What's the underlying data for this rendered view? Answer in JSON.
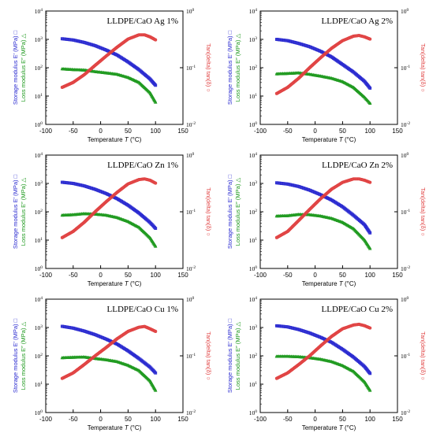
{
  "colors": {
    "storage": "#2a2ad0",
    "loss": "#1f9a1f",
    "tan": "#e04040",
    "axis": "#000000"
  },
  "shared": {
    "xlabel_prefix": "Temperature ",
    "xlabel_var": "T",
    "xlabel_unit": " (°C)",
    "ylabel_storage": "Storage modulus E′ (MPa) □",
    "ylabel_loss": "Loss modulus E″ (MPa) △",
    "ylabel_tan": "Tan(delta) tan(δ) ○",
    "x_ticks": [
      "-100",
      "-50",
      "0",
      "50",
      "100",
      "150"
    ],
    "y_left_ticks": [
      {
        "base": "10",
        "exp": "0"
      },
      {
        "base": "10",
        "exp": "1"
      },
      {
        "base": "10",
        "exp": "2"
      },
      {
        "base": "10",
        "exp": "3"
      },
      {
        "base": "10",
        "exp": "4"
      }
    ],
    "y_right_ticks": [
      {
        "base": "10",
        "exp": "-2"
      },
      {
        "base": "10",
        "exp": "-1"
      },
      {
        "base": "10",
        "exp": "0"
      }
    ]
  },
  "chart_data": [
    {
      "type": "line",
      "title": "LLDPE/CaO Ag 1%",
      "xlim": [
        -100,
        150
      ],
      "ylim_left": [
        1,
        10000
      ],
      "ylim_right": [
        0.01,
        1
      ],
      "yscale": "log",
      "series": [
        {
          "name": "Storage modulus E′",
          "axis": "left",
          "marker": "square",
          "x": [
            -70,
            -50,
            -30,
            -10,
            10,
            30,
            50,
            70,
            90,
            100
          ],
          "values": [
            1050,
            950,
            780,
            600,
            420,
            280,
            160,
            85,
            40,
            24
          ]
        },
        {
          "name": "Loss modulus E″",
          "axis": "left",
          "marker": "triangle",
          "x": [
            -70,
            -50,
            -30,
            -10,
            10,
            30,
            50,
            70,
            90,
            100
          ],
          "values": [
            90,
            85,
            82,
            72,
            65,
            58,
            45,
            30,
            13,
            6
          ]
        },
        {
          "name": "tan(δ)",
          "axis": "right",
          "marker": "circle",
          "x": [
            -70,
            -50,
            -30,
            -10,
            10,
            30,
            50,
            70,
            80,
            90,
            100
          ],
          "values": [
            0.045,
            0.055,
            0.075,
            0.11,
            0.16,
            0.23,
            0.32,
            0.38,
            0.38,
            0.35,
            0.31
          ]
        }
      ]
    },
    {
      "type": "line",
      "title": "LLDPE/CaO Ag 2%",
      "xlim": [
        -100,
        150
      ],
      "ylim_left": [
        1,
        10000
      ],
      "ylim_right": [
        0.01,
        1
      ],
      "yscale": "log",
      "series": [
        {
          "name": "Storage modulus E′",
          "axis": "left",
          "marker": "square",
          "x": [
            -70,
            -50,
            -30,
            -10,
            10,
            30,
            50,
            70,
            90,
            100
          ],
          "values": [
            1000,
            900,
            720,
            550,
            380,
            240,
            130,
            70,
            33,
            19
          ]
        },
        {
          "name": "Loss modulus E″",
          "axis": "left",
          "marker": "triangle",
          "x": [
            -70,
            -50,
            -30,
            -10,
            10,
            30,
            50,
            70,
            90,
            100
          ],
          "values": [
            60,
            62,
            65,
            58,
            50,
            42,
            32,
            20,
            9,
            5.5
          ]
        },
        {
          "name": "tan(δ)",
          "axis": "right",
          "marker": "circle",
          "x": [
            -70,
            -50,
            -30,
            -10,
            10,
            30,
            50,
            70,
            80,
            90,
            100
          ],
          "values": [
            0.035,
            0.045,
            0.065,
            0.1,
            0.15,
            0.22,
            0.3,
            0.36,
            0.37,
            0.35,
            0.32
          ]
        }
      ]
    },
    {
      "type": "line",
      "title": "LLDPE/CaO Zn 1%",
      "xlim": [
        -100,
        150
      ],
      "ylim_left": [
        1,
        10000
      ],
      "ylim_right": [
        0.01,
        1
      ],
      "yscale": "log",
      "series": [
        {
          "name": "Storage modulus E′",
          "axis": "left",
          "marker": "square",
          "x": [
            -70,
            -50,
            -30,
            -10,
            10,
            30,
            50,
            70,
            90,
            100
          ],
          "values": [
            1100,
            1000,
            820,
            620,
            440,
            290,
            170,
            90,
            42,
            26
          ]
        },
        {
          "name": "Loss modulus E″",
          "axis": "left",
          "marker": "triangle",
          "x": [
            -70,
            -50,
            -30,
            -10,
            10,
            30,
            50,
            70,
            90,
            100
          ],
          "values": [
            75,
            78,
            85,
            82,
            75,
            62,
            45,
            28,
            12,
            6
          ]
        },
        {
          "name": "tan(δ)",
          "axis": "right",
          "marker": "circle",
          "x": [
            -70,
            -50,
            -30,
            -10,
            10,
            30,
            50,
            70,
            80,
            90,
            100
          ],
          "values": [
            0.035,
            0.045,
            0.065,
            0.1,
            0.15,
            0.22,
            0.31,
            0.37,
            0.38,
            0.36,
            0.32
          ]
        }
      ]
    },
    {
      "type": "line",
      "title": "LLDPE/CaO Zn 2%",
      "xlim": [
        -100,
        150
      ],
      "ylim_left": [
        1,
        10000
      ],
      "ylim_right": [
        0.01,
        1
      ],
      "yscale": "log",
      "series": [
        {
          "name": "Storage modulus E′",
          "axis": "left",
          "marker": "square",
          "x": [
            -70,
            -50,
            -30,
            -10,
            10,
            30,
            50,
            70,
            90,
            100
          ],
          "values": [
            1050,
            950,
            780,
            580,
            400,
            260,
            150,
            75,
            35,
            18
          ]
        },
        {
          "name": "Loss modulus E″",
          "axis": "left",
          "marker": "triangle",
          "x": [
            -70,
            -50,
            -30,
            -10,
            10,
            30,
            50,
            70,
            90,
            100
          ],
          "values": [
            70,
            72,
            80,
            78,
            70,
            58,
            42,
            25,
            10,
            5
          ]
        },
        {
          "name": "tan(δ)",
          "axis": "right",
          "marker": "circle",
          "x": [
            -70,
            -50,
            -30,
            -10,
            10,
            30,
            50,
            70,
            80,
            90,
            100
          ],
          "values": [
            0.035,
            0.045,
            0.07,
            0.11,
            0.17,
            0.25,
            0.33,
            0.38,
            0.38,
            0.36,
            0.33
          ]
        }
      ]
    },
    {
      "type": "line",
      "title": "LLDPE/CaO Cu 1%",
      "xlim": [
        -100,
        150
      ],
      "ylim_left": [
        1,
        10000
      ],
      "ylim_right": [
        0.01,
        1
      ],
      "yscale": "log",
      "series": [
        {
          "name": "Storage modulus E′",
          "axis": "left",
          "marker": "square",
          "x": [
            -70,
            -50,
            -30,
            -10,
            10,
            30,
            50,
            70,
            90,
            100
          ],
          "values": [
            1100,
            950,
            750,
            560,
            390,
            260,
            150,
            80,
            40,
            25
          ]
        },
        {
          "name": "Loss modulus E″",
          "axis": "left",
          "marker": "triangle",
          "x": [
            -70,
            -50,
            -30,
            -10,
            10,
            30,
            50,
            70,
            90,
            100
          ],
          "values": [
            85,
            88,
            90,
            80,
            72,
            62,
            46,
            30,
            13,
            6
          ]
        },
        {
          "name": "tan(δ)",
          "axis": "right",
          "marker": "circle",
          "x": [
            -70,
            -50,
            -30,
            -10,
            10,
            30,
            50,
            70,
            80,
            90,
            100
          ],
          "values": [
            0.04,
            0.05,
            0.07,
            0.1,
            0.14,
            0.2,
            0.27,
            0.32,
            0.33,
            0.3,
            0.27
          ]
        }
      ]
    },
    {
      "type": "line",
      "title": "LLDPE/CaO Cu 2%",
      "xlim": [
        -100,
        150
      ],
      "ylim_left": [
        1,
        10000
      ],
      "ylim_right": [
        0.01,
        1
      ],
      "yscale": "log",
      "series": [
        {
          "name": "Storage modulus E′",
          "axis": "left",
          "marker": "square",
          "x": [
            -70,
            -50,
            -30,
            -10,
            10,
            30,
            50,
            70,
            90,
            100
          ],
          "values": [
            1150,
            1050,
            850,
            640,
            450,
            300,
            170,
            90,
            42,
            24
          ]
        },
        {
          "name": "Loss modulus E″",
          "axis": "left",
          "marker": "triangle",
          "x": [
            -70,
            -50,
            -30,
            -10,
            10,
            30,
            50,
            70,
            90,
            100
          ],
          "values": [
            95,
            95,
            92,
            85,
            75,
            62,
            45,
            28,
            12,
            6
          ]
        },
        {
          "name": "tan(δ)",
          "axis": "right",
          "marker": "circle",
          "x": [
            -70,
            -50,
            -30,
            -10,
            10,
            30,
            50,
            70,
            80,
            90,
            100
          ],
          "values": [
            0.04,
            0.05,
            0.07,
            0.1,
            0.15,
            0.22,
            0.3,
            0.35,
            0.36,
            0.34,
            0.31
          ]
        }
      ]
    }
  ]
}
